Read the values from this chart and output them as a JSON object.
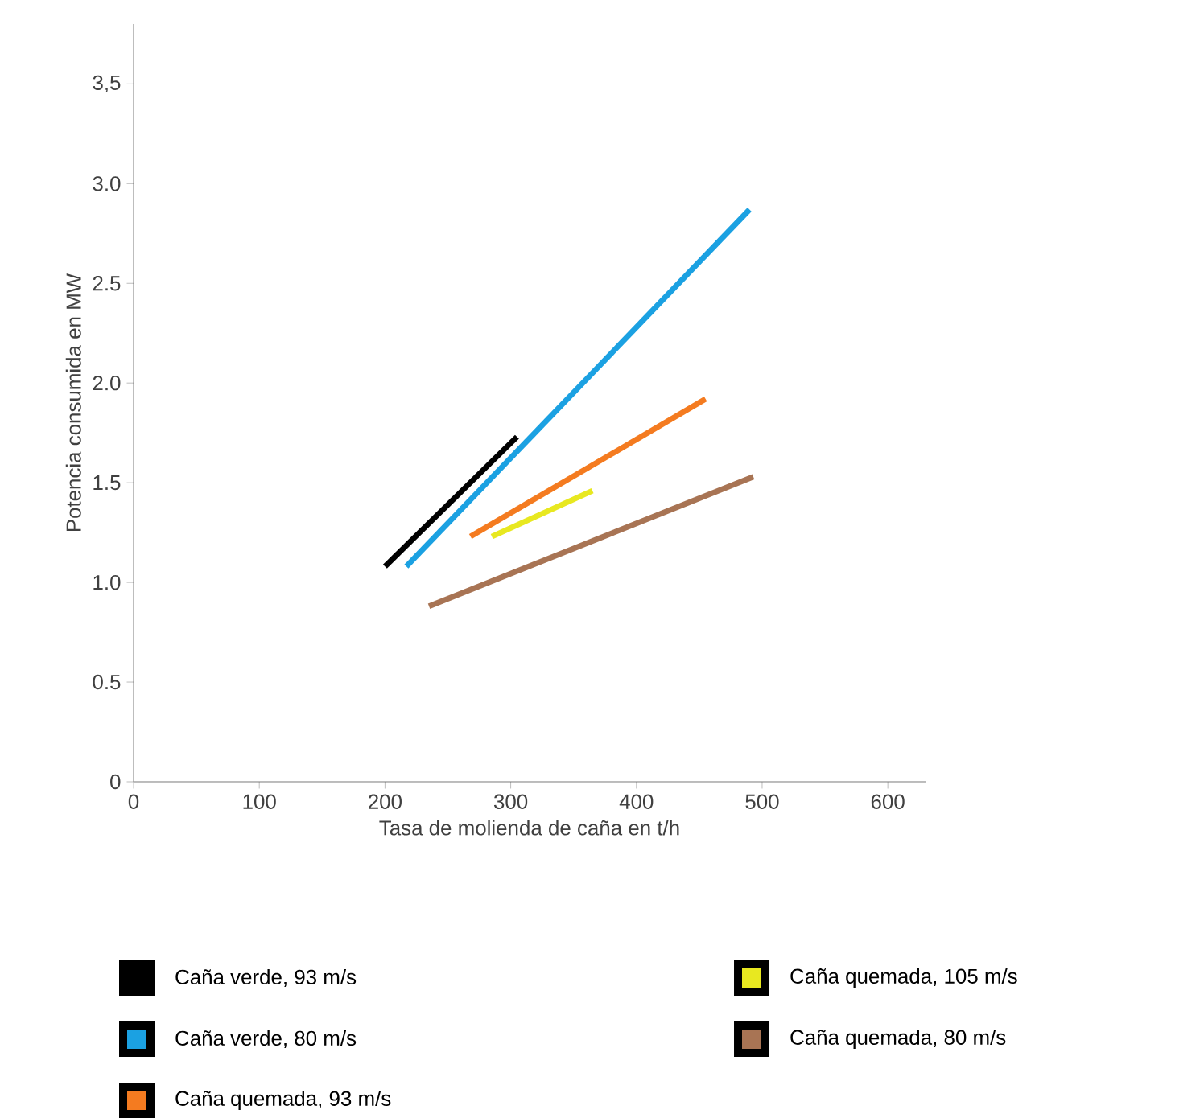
{
  "chart_data": {
    "type": "line",
    "xlabel": "Tasa de molienda de caña en t/h",
    "ylabel": "Potencia consumida en MW",
    "xlim": [
      0,
      630
    ],
    "xticks": [
      0,
      100,
      200,
      300,
      400,
      500,
      600
    ],
    "ylim": [
      0,
      3.8
    ],
    "yticks": [
      0,
      {
        "value": 0.5,
        "label": "0.5"
      },
      {
        "value": 1.0,
        "label": "1.0"
      },
      {
        "value": 1.5,
        "label": "1.5"
      },
      {
        "value": 2.0,
        "label": "2.0"
      },
      {
        "value": 2.5,
        "label": "2.5"
      },
      {
        "value": 3.0,
        "label": "3.0"
      },
      {
        "value": 3.5,
        "label": "3,5"
      }
    ],
    "legend": "bottom",
    "marker": "none",
    "line_style": "solid",
    "series": [
      {
        "name": "Caña verde, 93 m/s",
        "color": "#000000",
        "x": [
          200,
          305
        ],
        "values": [
          1.08,
          1.73
        ]
      },
      {
        "name": "Caña verde, 80 m/s",
        "color": "#1ba1e2",
        "x": [
          217,
          490
        ],
        "values": [
          1.08,
          2.87
        ]
      },
      {
        "name": "Caña quemada, 93 m/s",
        "color": "#f47b20",
        "x": [
          268,
          455
        ],
        "values": [
          1.23,
          1.92
        ]
      },
      {
        "name": "Caña quemada, 105 m/s",
        "color": "#e8e820",
        "x": [
          285,
          365
        ],
        "values": [
          1.23,
          1.46
        ]
      },
      {
        "name": "Caña quemada, 80 m/s",
        "color": "#a87454",
        "x": [
          235,
          493
        ],
        "values": [
          0.88,
          1.53
        ]
      }
    ]
  }
}
